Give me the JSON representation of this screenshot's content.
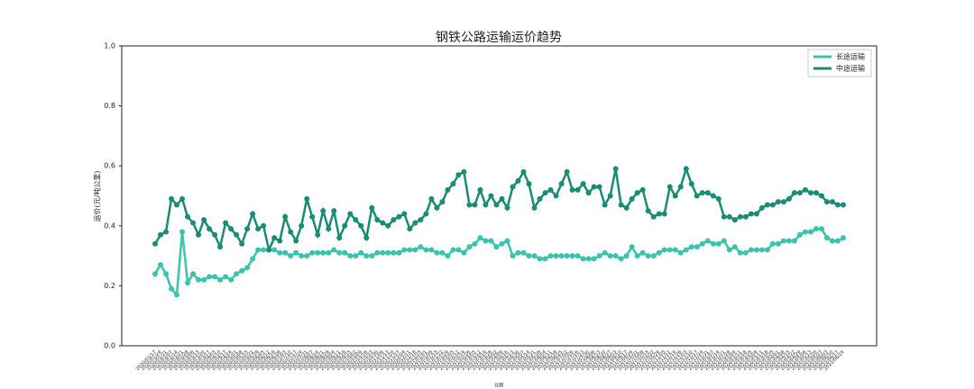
{
  "chart_data": {
    "type": "line",
    "title": "钢铁公路运输运价趋势",
    "x_label": "日期",
    "y_label": "运价(元/吨公里)",
    "categories": [
      "2020/01/17",
      "2020/01/24",
      "2020/01/31",
      "2020/02/07",
      "2020/02/14",
      "2020/02/21",
      "2020/02/28",
      "2020/03/06",
      "2020/03/13",
      "2020/03/20",
      "2020/03/27",
      "2020/04/03",
      "2020/04/10",
      "2020/04/17",
      "2020/04/24",
      "2020/05/01",
      "2020/05/08",
      "2020/05/15",
      "2020/05/22",
      "2020/05/29",
      "2020/06/05",
      "2020/06/12",
      "2020/06/19",
      "2020/06/26",
      "2020/07/03",
      "2020/07/10",
      "2020/07/17",
      "2020/07/24",
      "2020/07/31",
      "2020/08/07",
      "2020/08/14",
      "2020/08/21",
      "2020/08/28",
      "2020/09/04",
      "2020/09/11",
      "2020/09/18",
      "2020/09/25",
      "2020/10/02",
      "2020/10/09",
      "2020/10/16",
      "2020/10/23",
      "2020/10/30",
      "2020/11/06",
      "2020/11/13",
      "2020/11/20",
      "2020/11/27",
      "2020/12/04",
      "2020/12/11",
      "2020/12/18",
      "2020/12/25",
      "2021/01/01",
      "2021/01/08",
      "2021/01/15",
      "2021/01/22",
      "2021/01/29",
      "2021/02/05",
      "2021/02/12",
      "2021/02/19",
      "2021/02/26",
      "2021/03/05",
      "2021/03/12",
      "2021/03/19",
      "2021/03/26",
      "2021/04/02",
      "2021/04/09",
      "2021/04/16",
      "2021/04/23",
      "2021/04/30",
      "2021/05/07",
      "2021/05/14",
      "2021/05/21",
      "2021/05/28",
      "2021/06/04",
      "2021/06/11",
      "2021/06/18",
      "2021/06/25",
      "2021/07/02",
      "2021/07/09",
      "2021/07/16",
      "2021/07/23",
      "2021/07/30",
      "2021/08/06",
      "2021/08/13",
      "2021/08/20",
      "2021/08/27",
      "2021/09/03",
      "2021/09/10",
      "2021/09/17",
      "2021/09/24",
      "2021/10/01",
      "2021/10/08",
      "2021/10/15",
      "2021/10/22",
      "2021/10/29",
      "2021/11/05",
      "2021/11/12",
      "2021/11/19",
      "2021/11/26",
      "2021/12/03",
      "2021/12/10",
      "2021/12/17",
      "2021/12/24",
      "2021/12/31",
      "2022/01/07",
      "2022/01/14",
      "2022/01/21",
      "2022/01/28",
      "2022/02/04",
      "2022/02/11",
      "2022/02/18",
      "2022/02/25",
      "2022/03/04",
      "2022/03/11",
      "2022/03/18",
      "2022/03/25",
      "2022/04/01",
      "2022/04/08",
      "2022/04/15",
      "2022/04/22",
      "2022/04/29",
      "2022/05/06",
      "2022/05/13",
      "2022/05/20",
      "2022/05/27",
      "2022/06/03",
      "2022/06/10",
      "2022/06/17",
      "2022/06/24"
    ],
    "series": [
      {
        "name": "长途运输",
        "color": "#3cc3ad",
        "values": [
          0.24,
          0.27,
          0.24,
          0.19,
          0.17,
          0.38,
          0.21,
          0.24,
          0.22,
          0.22,
          0.23,
          0.23,
          0.22,
          0.23,
          0.22,
          0.24,
          0.25,
          0.26,
          0.29,
          0.32,
          0.32,
          0.32,
          0.32,
          0.31,
          0.31,
          0.3,
          0.31,
          0.3,
          0.3,
          0.31,
          0.31,
          0.31,
          0.31,
          0.32,
          0.31,
          0.31,
          0.3,
          0.3,
          0.31,
          0.3,
          0.3,
          0.31,
          0.31,
          0.31,
          0.31,
          0.31,
          0.32,
          0.32,
          0.32,
          0.33,
          0.32,
          0.32,
          0.31,
          0.31,
          0.3,
          0.32,
          0.32,
          0.31,
          0.33,
          0.34,
          0.36,
          0.35,
          0.35,
          0.33,
          0.34,
          0.35,
          0.3,
          0.31,
          0.31,
          0.3,
          0.3,
          0.29,
          0.29,
          0.3,
          0.3,
          0.3,
          0.3,
          0.3,
          0.3,
          0.29,
          0.29,
          0.29,
          0.3,
          0.31,
          0.3,
          0.3,
          0.29,
          0.3,
          0.33,
          0.3,
          0.31,
          0.3,
          0.3,
          0.31,
          0.32,
          0.32,
          0.32,
          0.31,
          0.32,
          0.33,
          0.33,
          0.34,
          0.35,
          0.34,
          0.34,
          0.35,
          0.32,
          0.33,
          0.31,
          0.31,
          0.32,
          0.32,
          0.32,
          0.32,
          0.34,
          0.34,
          0.35,
          0.35,
          0.35,
          0.37,
          0.38,
          0.38,
          0.39,
          0.39,
          0.36,
          0.35,
          0.35,
          0.36
        ]
      },
      {
        "name": "中途运输",
        "color": "#1a8c74",
        "values": [
          0.34,
          0.37,
          0.38,
          0.49,
          0.47,
          0.49,
          0.43,
          0.41,
          0.37,
          0.42,
          0.39,
          0.37,
          0.33,
          0.41,
          0.39,
          0.37,
          0.34,
          0.39,
          0.44,
          0.39,
          0.4,
          0.32,
          0.36,
          0.35,
          0.43,
          0.38,
          0.35,
          0.4,
          0.49,
          0.43,
          0.37,
          0.45,
          0.39,
          0.45,
          0.36,
          0.4,
          0.44,
          0.42,
          0.4,
          0.36,
          0.46,
          0.42,
          0.41,
          0.4,
          0.42,
          0.43,
          0.44,
          0.39,
          0.41,
          0.42,
          0.44,
          0.49,
          0.46,
          0.48,
          0.52,
          0.54,
          0.57,
          0.58,
          0.47,
          0.47,
          0.52,
          0.47,
          0.5,
          0.47,
          0.49,
          0.46,
          0.53,
          0.55,
          0.58,
          0.54,
          0.46,
          0.49,
          0.51,
          0.52,
          0.5,
          0.54,
          0.58,
          0.52,
          0.52,
          0.54,
          0.51,
          0.53,
          0.53,
          0.47,
          0.5,
          0.59,
          0.47,
          0.46,
          0.49,
          0.51,
          0.52,
          0.45,
          0.43,
          0.44,
          0.44,
          0.53,
          0.5,
          0.53,
          0.59,
          0.54,
          0.5,
          0.51,
          0.51,
          0.5,
          0.49,
          0.43,
          0.43,
          0.42,
          0.43,
          0.43,
          0.44,
          0.44,
          0.46,
          0.47,
          0.47,
          0.48,
          0.48,
          0.49,
          0.51,
          0.51,
          0.52,
          0.51,
          0.51,
          0.5,
          0.48,
          0.48,
          0.47,
          0.47
        ]
      }
    ],
    "ylim": [
      0,
      1
    ],
    "yticks": [
      {
        "value": 0,
        "label": "0.0"
      },
      0.2,
      0.4,
      0.6,
      0.8,
      {
        "value": 1,
        "label": "1.0"
      }
    ],
    "grid": false,
    "legend": "upper right"
  }
}
